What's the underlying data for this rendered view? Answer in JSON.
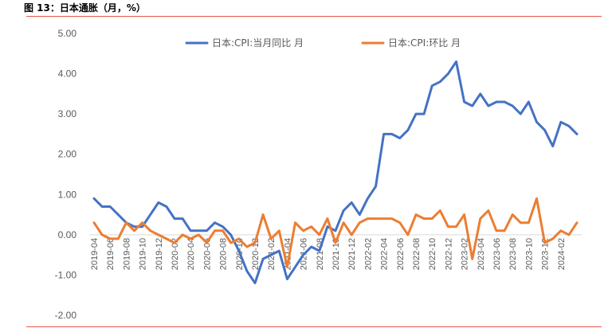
{
  "figure": {
    "title": "图 13：日本通胀（月，%）"
  },
  "colors": {
    "yoy": "#4472c4",
    "mom": "#ed7d31",
    "rule": "#e8574a"
  },
  "chart_data": {
    "type": "line",
    "title": "图 13：日本通胀（月，%）",
    "ylim": [
      -2,
      5
    ],
    "yticks": [
      "5.00",
      "4.00",
      "3.00",
      "2.00",
      "1.00",
      "0.00",
      "-1.00",
      "-2.00"
    ],
    "ytick_values": [
      5,
      4,
      3,
      2,
      1,
      0,
      -1,
      -2
    ],
    "grid": false,
    "legend_position": "top",
    "x": [
      "2019-04",
      "2019-05",
      "2019-06",
      "2019-07",
      "2019-08",
      "2019-09",
      "2019-10",
      "2019-11",
      "2019-12",
      "2020-01",
      "2020-02",
      "2020-03",
      "2020-04",
      "2020-05",
      "2020-06",
      "2020-07",
      "2020-08",
      "2020-09",
      "2020-10",
      "2020-11",
      "2020-12",
      "2021-01",
      "2021-02",
      "2021-03",
      "2021-04",
      "2021-05",
      "2021-06",
      "2021-07",
      "2021-08",
      "2021-09",
      "2021-10",
      "2021-11",
      "2021-12",
      "2022-01",
      "2022-02",
      "2022-03",
      "2022-04",
      "2022-05",
      "2022-06",
      "2022-07",
      "2022-08",
      "2022-09",
      "2022-10",
      "2022-11",
      "2022-12",
      "2023-01",
      "2023-02",
      "2023-03",
      "2023-04",
      "2023-05",
      "2023-06",
      "2023-07",
      "2023-08",
      "2023-09",
      "2023-10",
      "2023-11",
      "2023-12",
      "2024-01",
      "2024-02",
      "2024-03",
      "2024-04"
    ],
    "xticks": [
      "2019-04",
      "2019-06",
      "2019-08",
      "2019-10",
      "2019-12",
      "2020-02",
      "2020-04",
      "2020-06",
      "2020-08",
      "2020-10",
      "2020-12",
      "2021-02",
      "2021-04",
      "2021-06",
      "2021-08",
      "2021-10",
      "2021-12",
      "2022-02",
      "2022-04",
      "2022-06",
      "2022-08",
      "2022-10",
      "2022-12",
      "2023-02",
      "2023-04",
      "2023-06",
      "2023-08",
      "2023-10",
      "2023-12",
      "2024-02"
    ],
    "series": [
      {
        "name": "日本:CPI:当月同比 月",
        "color": "#4472c4",
        "values": [
          0.9,
          0.7,
          0.7,
          0.5,
          0.3,
          0.2,
          0.2,
          0.5,
          0.8,
          0.7,
          0.4,
          0.4,
          0.1,
          0.1,
          0.1,
          0.3,
          0.2,
          0.0,
          -0.4,
          -0.9,
          -1.2,
          -0.6,
          -0.5,
          -0.4,
          -1.1,
          -0.8,
          -0.5,
          -0.3,
          -0.4,
          0.2,
          0.1,
          0.6,
          0.8,
          0.5,
          0.9,
          1.2,
          2.5,
          2.5,
          2.4,
          2.6,
          3.0,
          3.0,
          3.7,
          3.8,
          4.0,
          4.3,
          3.3,
          3.2,
          3.5,
          3.2,
          3.3,
          3.3,
          3.2,
          3.0,
          3.3,
          2.8,
          2.6,
          2.2,
          2.8,
          2.7,
          2.5
        ]
      },
      {
        "name": "日本:CPI:环比 月",
        "color": "#ed7d31",
        "values": [
          0.3,
          0.0,
          -0.1,
          -0.1,
          0.3,
          0.1,
          0.3,
          0.1,
          0.0,
          -0.1,
          -0.2,
          0.0,
          -0.1,
          0.0,
          -0.2,
          0.1,
          0.1,
          -0.2,
          -0.1,
          -0.3,
          -0.2,
          0.5,
          -0.1,
          0.1,
          -0.8,
          0.3,
          0.1,
          0.2,
          0.0,
          0.4,
          -0.2,
          0.3,
          0.0,
          0.3,
          0.4,
          0.4,
          0.4,
          0.4,
          0.3,
          0.0,
          0.5,
          0.4,
          0.4,
          0.6,
          0.2,
          0.2,
          0.5,
          -0.6,
          0.4,
          0.6,
          0.1,
          0.1,
          0.5,
          0.3,
          0.3,
          0.9,
          -0.2,
          -0.1,
          0.1,
          0.0,
          0.3
        ]
      }
    ]
  }
}
